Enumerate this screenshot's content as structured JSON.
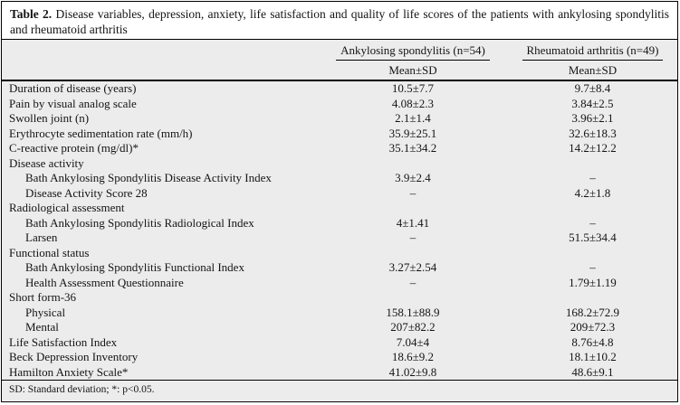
{
  "title": {
    "label": "Table 2.",
    "text": " Disease variables, depression, anxiety, life satisfaction and quality of life scores of the patients with ankylosing spondylitis and rheumatoid arthritis"
  },
  "table": {
    "column_groups": [
      {
        "label": "Ankylosing spondylitis (n=54)",
        "sub": "Mean±SD"
      },
      {
        "label": "Rheumatoid arthritis (n=49)",
        "sub": "Mean±SD"
      }
    ],
    "rows": [
      {
        "label": "Duration of disease (years)",
        "section": false,
        "indent": false,
        "as": "10.5±7.7",
        "ra": "9.7±8.4"
      },
      {
        "label": "Pain by visual analog scale",
        "section": false,
        "indent": false,
        "as": "4.08±2.3",
        "ra": "3.84±2.5"
      },
      {
        "label": "Swollen joint (n)",
        "section": false,
        "indent": false,
        "as": "2.1±1.4",
        "ra": "3.96±2.1"
      },
      {
        "label": "Erythrocyte sedimentation rate (mm/h)",
        "section": false,
        "indent": false,
        "as": "35.9±25.1",
        "ra": "32.6±18.3"
      },
      {
        "label": "C-reactive protein (mg/dl)*",
        "section": false,
        "indent": false,
        "as": "35.1±34.2",
        "ra": "14.2±12.2"
      },
      {
        "label": "Disease activity",
        "section": true,
        "indent": false,
        "as": "",
        "ra": ""
      },
      {
        "label": "Bath Ankylosing Spondylitis Disease Activity Index",
        "section": false,
        "indent": true,
        "as": "3.9±2.4",
        "ra": "–"
      },
      {
        "label": "Disease Activity Score 28",
        "section": false,
        "indent": true,
        "as": "–",
        "ra": "4.2±1.8"
      },
      {
        "label": "Radiological assessment",
        "section": true,
        "indent": false,
        "as": "",
        "ra": ""
      },
      {
        "label": "Bath Ankylosing Spondylitis Radiological Index",
        "section": false,
        "indent": true,
        "as": "4±1.41",
        "ra": "–"
      },
      {
        "label": "Larsen",
        "section": false,
        "indent": true,
        "as": "–",
        "ra": "51.5±34.4"
      },
      {
        "label": "Functional status",
        "section": true,
        "indent": false,
        "as": "",
        "ra": ""
      },
      {
        "label": "Bath Ankylosing Spondylitis Functional Index",
        "section": false,
        "indent": true,
        "as": "3.27±2.54",
        "ra": "–"
      },
      {
        "label": "Health Assessment Questionnaire",
        "section": false,
        "indent": true,
        "as": "–",
        "ra": "1.79±1.19"
      },
      {
        "label": "Short form-36",
        "section": true,
        "indent": false,
        "as": "",
        "ra": ""
      },
      {
        "label": "Physical",
        "section": false,
        "indent": true,
        "as": "158.1±88.9",
        "ra": "168.2±72.9"
      },
      {
        "label": "Mental",
        "section": false,
        "indent": true,
        "as": "207±82.2",
        "ra": "209±72.3"
      },
      {
        "label": "Life Satisfaction Index",
        "section": false,
        "indent": false,
        "as": "7.04±4",
        "ra": "8.76±4.8"
      },
      {
        "label": "Beck Depression Inventory",
        "section": false,
        "indent": false,
        "as": "18.6±9.2",
        "ra": "18.1±10.2"
      },
      {
        "label": "Hamilton Anxiety Scale*",
        "section": false,
        "indent": false,
        "as": "41.02±9.8",
        "ra": "48.6±9.1"
      }
    ],
    "footnote": "SD: Standard deviation; *: p<0.05."
  },
  "colors": {
    "table_background": "#ececec",
    "page_background": "#ffffff",
    "border": "#000000",
    "text": "#141414"
  }
}
